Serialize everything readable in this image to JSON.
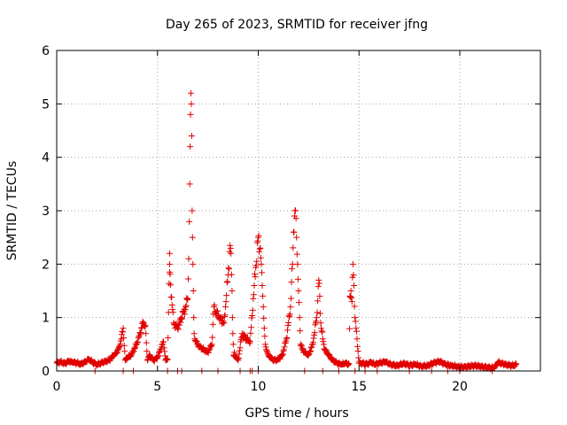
{
  "chart_data": {
    "type": "scatter",
    "title": "Day 265 of 2023, SRMTID for receiver jfng",
    "xlabel": "GPS time / hours",
    "ylabel": "SRMTID / TECUs",
    "xlim": [
      0,
      24
    ],
    "ylim": [
      0,
      6
    ],
    "xticks": [
      0,
      5,
      10,
      15,
      20
    ],
    "yticks": [
      0,
      1,
      2,
      3,
      4,
      5,
      6
    ],
    "xtick_labels": [
      "0",
      "5",
      "10",
      "15",
      "20"
    ],
    "ytick_labels": [
      "0",
      "1",
      "2",
      "3",
      "4",
      "5",
      "6"
    ],
    "grid": true,
    "marker": "+",
    "color": "#e00000",
    "series": [
      {
        "name": "SRMTID",
        "x": [
          0.0,
          0.2,
          0.4,
          0.6,
          0.8,
          1.0,
          1.2,
          1.4,
          1.6,
          1.8,
          2.0,
          2.2,
          2.4,
          2.6,
          2.8,
          3.0,
          3.1,
          3.2,
          3.3,
          3.4,
          3.5,
          3.7,
          3.9,
          4.1,
          4.2,
          4.3,
          4.4,
          4.5,
          4.6,
          4.8,
          5.0,
          5.2,
          5.3,
          5.4,
          5.5,
          5.6,
          5.6,
          5.6,
          5.8,
          6.0,
          6.2,
          6.4,
          6.5,
          6.55,
          6.6,
          6.62,
          6.64,
          6.66,
          6.68,
          6.7,
          6.72,
          6.74,
          6.76,
          6.78,
          6.8,
          6.82,
          6.85,
          6.9,
          7.0,
          7.1,
          7.3,
          7.5,
          7.7,
          7.8,
          7.9,
          8.1,
          8.3,
          8.4,
          8.5,
          8.6,
          8.65,
          8.7,
          8.72,
          8.74,
          8.76,
          8.78,
          8.8,
          8.82,
          8.84,
          8.9,
          9.0,
          9.2,
          9.4,
          9.6,
          9.8,
          10.0,
          10.1,
          10.15,
          10.2,
          10.25,
          10.3,
          10.35,
          10.4,
          10.5,
          10.6,
          10.8,
          11.0,
          11.2,
          11.4,
          11.6,
          11.7,
          11.75,
          11.8,
          11.85,
          11.9,
          11.95,
          12.0,
          12.05,
          12.1,
          12.2,
          12.3,
          12.5,
          12.7,
          12.9,
          13.0,
          13.05,
          13.1,
          13.2,
          13.3,
          13.5,
          13.7,
          13.9,
          14.1,
          14.3,
          14.5,
          14.55,
          14.6,
          14.65,
          14.7,
          14.75,
          14.8,
          14.85,
          14.9,
          15.0,
          15.2,
          15.4,
          15.6,
          15.8,
          16.0,
          16.3,
          16.6,
          16.9,
          17.2,
          17.5,
          17.8,
          18.1,
          18.4,
          18.7,
          19.0,
          19.3,
          19.6,
          19.9,
          20.2,
          20.5,
          20.8,
          21.1,
          21.4,
          21.7,
          21.9,
          22.1,
          22.3,
          22.6,
          22.8
        ],
        "y": [
          0.15,
          0.17,
          0.14,
          0.18,
          0.16,
          0.15,
          0.13,
          0.17,
          0.22,
          0.16,
          0.12,
          0.15,
          0.18,
          0.2,
          0.28,
          0.35,
          0.45,
          0.6,
          0.8,
          0.2,
          0.25,
          0.3,
          0.45,
          0.65,
          0.8,
          0.9,
          0.85,
          0.2,
          0.3,
          0.2,
          0.25,
          0.45,
          0.55,
          0.2,
          0.22,
          2.0,
          2.2,
          1.85,
          0.9,
          0.8,
          1.0,
          1.2,
          1.35,
          2.1,
          3.5,
          4.2,
          4.8,
          5.2,
          5.0,
          4.4,
          3.0,
          2.5,
          2.0,
          1.5,
          1.0,
          0.7,
          0.6,
          0.55,
          0.5,
          0.45,
          0.4,
          0.35,
          0.5,
          1.2,
          1.1,
          1.0,
          0.9,
          1.3,
          1.8,
          2.35,
          2.2,
          1.5,
          1.0,
          0.7,
          0.5,
          0.3,
          0.28,
          0.35,
          0.3,
          0.25,
          0.2,
          0.7,
          0.6,
          0.55,
          1.6,
          2.5,
          2.3,
          2.0,
          1.6,
          1.2,
          0.8,
          0.5,
          0.4,
          0.3,
          0.25,
          0.2,
          0.22,
          0.3,
          0.6,
          1.2,
          2.0,
          2.6,
          2.9,
          3.0,
          2.5,
          2.0,
          1.5,
          1.0,
          0.5,
          0.4,
          0.35,
          0.3,
          0.5,
          1.0,
          1.7,
          1.4,
          0.9,
          0.6,
          0.4,
          0.3,
          0.2,
          0.15,
          0.12,
          0.14,
          0.13,
          1.4,
          1.5,
          1.3,
          2.0,
          1.6,
          1.0,
          0.8,
          0.6,
          0.15,
          0.14,
          0.13,
          0.16,
          0.12,
          0.15,
          0.17,
          0.12,
          0.1,
          0.14,
          0.11,
          0.12,
          0.09,
          0.1,
          0.15,
          0.18,
          0.12,
          0.1,
          0.08,
          0.07,
          0.09,
          0.1,
          0.08,
          0.07,
          0.05,
          0.16,
          0.14,
          0.12,
          0.1,
          0.12
        ],
        "zero_x": [
          1.9,
          3.3,
          3.8,
          5.5,
          6.0,
          6.2,
          7.2,
          8.0,
          9.1,
          9.6,
          9.7,
          10.0,
          12.3,
          13.2,
          14.0,
          14.8,
          15.3,
          15.9,
          17.5,
          18.6,
          19.4,
          20.0,
          21.6
        ]
      }
    ]
  }
}
